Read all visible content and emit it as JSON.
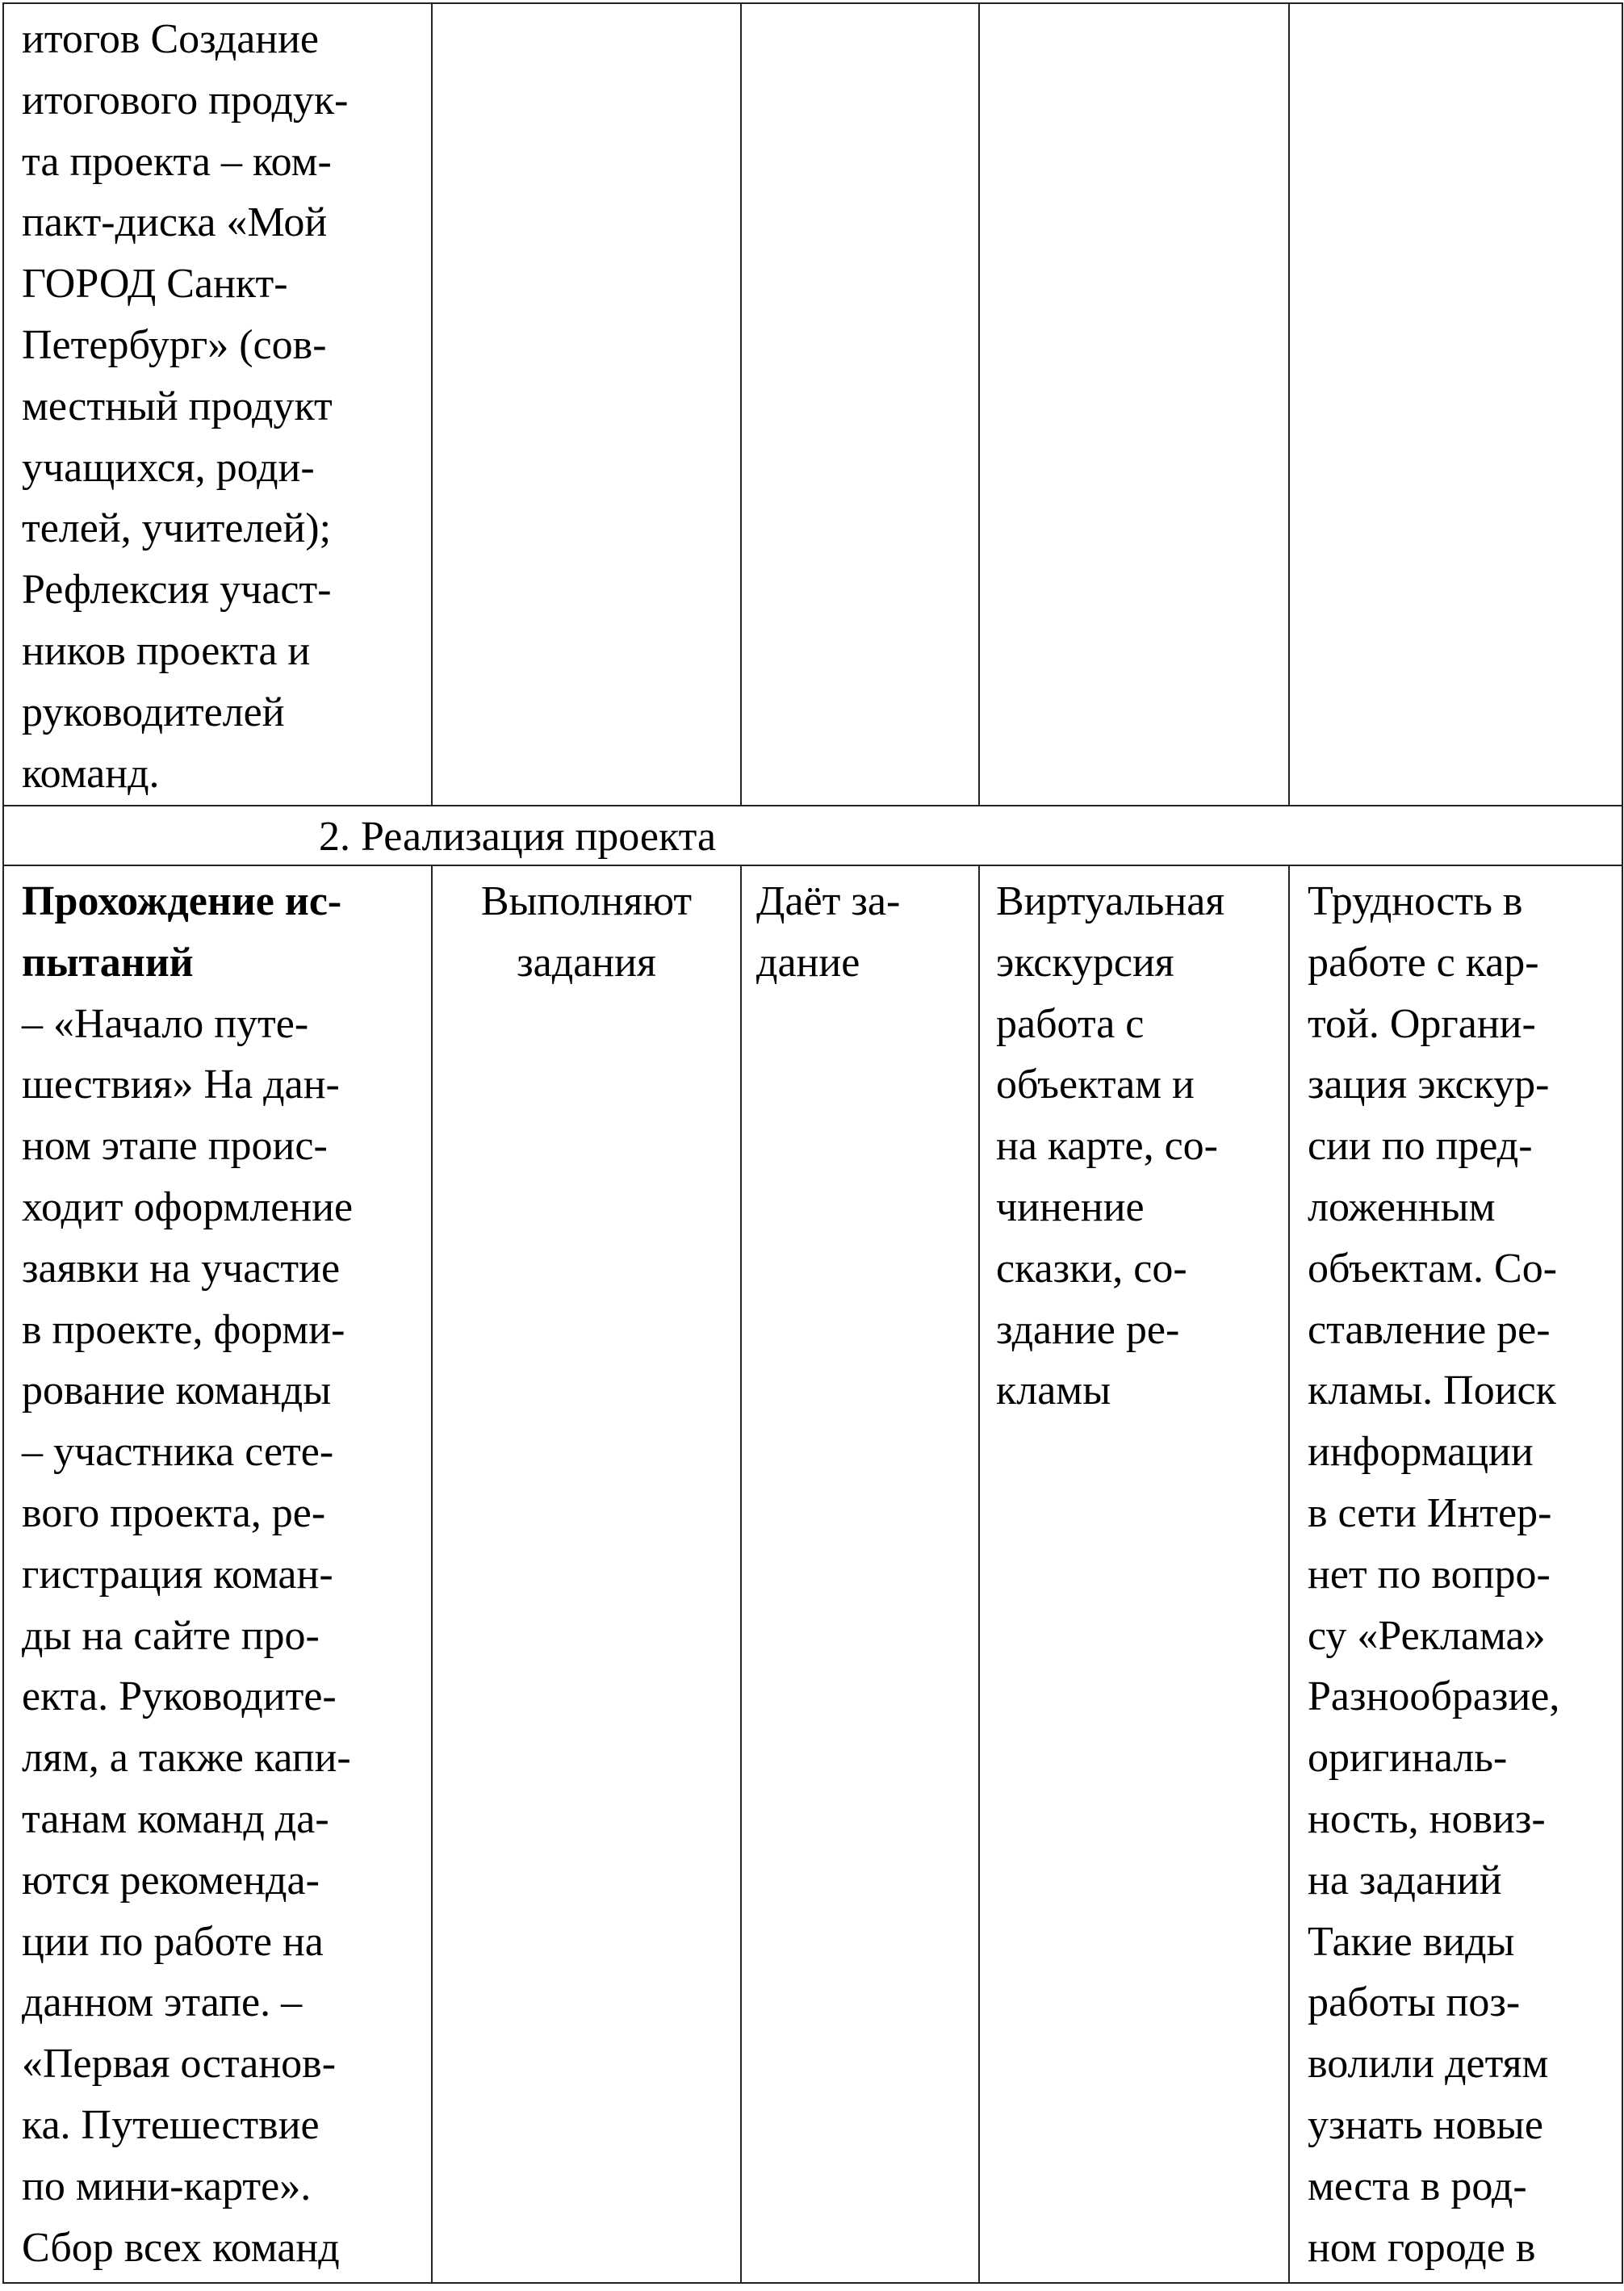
{
  "row_continuation": {
    "col1_lines": [
      "итогов Создание",
      "итогового продук-",
      "та проекта – ком-",
      "пакт-диска «Мой",
      "ГОРОД Санкт-",
      "Петербург» (сов-",
      "местный продукт",
      "учащихся, роди-",
      "телей, учителей);",
      "Рефлексия участ-",
      "ников проекта и",
      "руководителей",
      "команд."
    ]
  },
  "section_header": "2.  Реализация проекта",
  "row_stage": {
    "col1_bold_lines": [
      "Прохождение ис-",
      "пытаний"
    ],
    "col1_lines": [
      "– «Начало путе-",
      "шествия» На дан-",
      "ном этапе проис-",
      "ходит оформление",
      "заявки на участие",
      "в проекте, форми-",
      "рование команды",
      "– участника сете-",
      "вого проекта, ре-",
      "гистрация коман-",
      "ды на сайте про-",
      "екта. Руководите-",
      "лям, а также капи-",
      "танам команд да-",
      "ются рекоменда-",
      "ции по работе на",
      "данном этапе.  –",
      "«Первая останов-",
      "ка. Путешествие",
      "по мини-карте».",
      "Сбор всех команд"
    ],
    "col2_lines": [
      "Выполняют",
      "задания"
    ],
    "col3_lines": [
      "Даёт за-",
      "дание"
    ],
    "col4_lines": [
      "Виртуальная",
      "экскурсия",
      "работа с",
      "объектам и",
      "на карте, со-",
      "чинение",
      "сказки, со-",
      "здание ре-",
      "кламы"
    ],
    "col5_lines": [
      "Трудность в",
      "работе с кар-",
      "той. Органи-",
      "зация экскур-",
      "сии по пред-",
      "ложенным",
      "объектам. Со-",
      "ставление ре-",
      "кламы. Поиск",
      "информации",
      "в сети Интер-",
      "нет по вопро-",
      "су «Реклама»",
      "Разнообразие,",
      "оригиналь-",
      "ность, новиз-",
      "на заданий",
      "Такие виды",
      "работы поз-",
      "волили детям",
      "узнать новые",
      "места в род-",
      "ном городе в"
    ]
  }
}
